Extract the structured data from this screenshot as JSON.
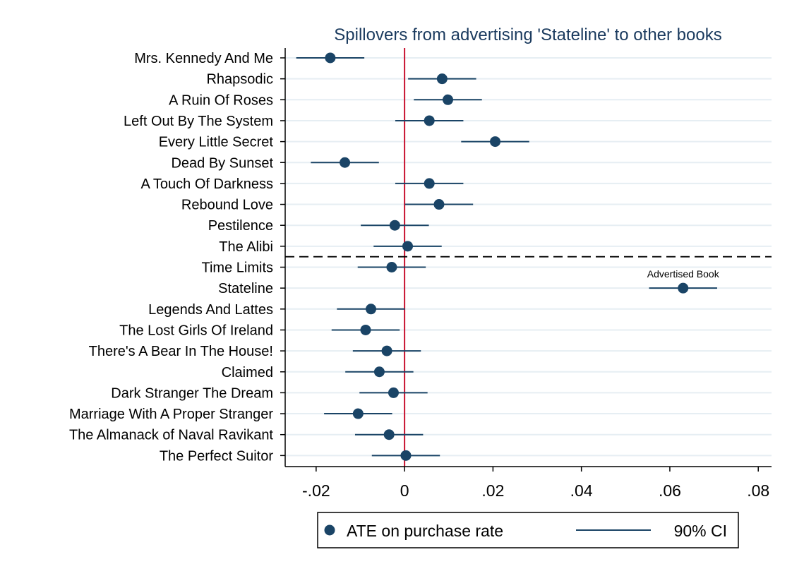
{
  "chart_data": {
    "type": "scatter",
    "title": "Spillovers from advertising 'Stateline' to other books",
    "xlabel": "",
    "ylabel": "",
    "xlim": [
      -0.027,
      0.083
    ],
    "xticks": [
      -0.02,
      0,
      0.02,
      0.04,
      0.06,
      0.08
    ],
    "xtick_labels": [
      "-.02",
      "0",
      ".02",
      ".04",
      ".06",
      ".08"
    ],
    "reference_line_x": 0,
    "separator_after_index": 9,
    "grid": "horizontal",
    "legend_position": "bottom",
    "categories": [
      "Mrs. Kennedy And Me",
      "Rhapsodic",
      "A Ruin Of Roses",
      "Left Out By The System",
      "Every Little Secret",
      "Dead By Sunset",
      "A Touch Of Darkness",
      "Rebound Love",
      "Pestilence",
      "The Alibi",
      "Time Limits",
      "Stateline",
      "Legends And Lattes",
      "The Lost Girls Of Ireland",
      "There's A Bear In The House!",
      "Claimed",
      "Dark Stranger The Dream",
      "Marriage With A Proper Stranger",
      "The Almanack of Naval Ravikant",
      "The Perfect Suitor"
    ],
    "series": [
      {
        "name": "ATE on purchase rate",
        "values": [
          -0.0168,
          0.0085,
          0.0098,
          0.0056,
          0.0205,
          -0.0135,
          0.0056,
          0.0078,
          -0.0022,
          0.0007,
          -0.0029,
          0.063,
          -0.0076,
          -0.0088,
          -0.004,
          -0.0057,
          -0.0025,
          -0.0105,
          -0.0035,
          0.0003
        ]
      },
      {
        "name": "90% CI",
        "lower": [
          -0.0245,
          0.0008,
          0.0021,
          -0.0021,
          0.0128,
          -0.0212,
          -0.0021,
          0.0001,
          -0.0099,
          -0.007,
          -0.0106,
          0.0553,
          -0.0153,
          -0.0165,
          -0.0117,
          -0.0134,
          -0.0102,
          -0.0182,
          -0.0112,
          -0.0074
        ],
        "upper": [
          -0.0091,
          0.0162,
          0.0175,
          0.0133,
          0.0282,
          -0.0058,
          0.0133,
          0.0155,
          0.0055,
          0.0084,
          0.0048,
          0.0707,
          0.0001,
          -0.0011,
          0.0037,
          0.002,
          0.0052,
          -0.0028,
          0.0042,
          0.008
        ]
      }
    ],
    "annotations": [
      {
        "text": "Advertised Book",
        "category": "Stateline"
      }
    ]
  },
  "colors": {
    "marker": "#1a4466",
    "ci_line": "#1a4466",
    "reference_line": "#c8102e",
    "grid": "#e6eef3",
    "title": "#1a3a5e",
    "separator": "#000000"
  }
}
